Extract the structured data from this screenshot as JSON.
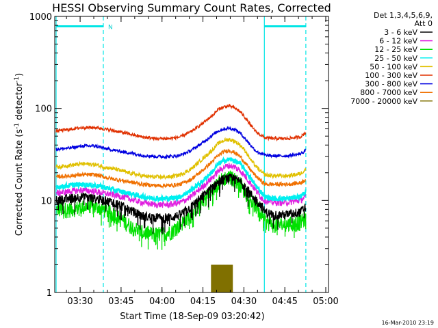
{
  "chart_data": {
    "type": "line",
    "title": "HESSI Observing Summary Count Rates, Corrected",
    "xlabel": "Start Time (18-Sep-09 03:20:42)",
    "ylabel_main": "Corrected Count Rate (s",
    "ylabel_exp1": "-1",
    "ylabel_mid": " detector",
    "ylabel_exp2": "-1",
    "ylabel_end": ")",
    "y_scale": "log",
    "ylim": [
      1,
      1000
    ],
    "xlim_minutes": [
      0,
      100.3
    ],
    "y_ticks": [
      {
        "value": 1,
        "label": "1"
      },
      {
        "value": 10,
        "label": "10"
      },
      {
        "value": 100,
        "label": "100"
      },
      {
        "value": 1000,
        "label": "1000"
      }
    ],
    "x_ticks": [
      {
        "minute": 9.3,
        "label": "03:30"
      },
      {
        "minute": 24.3,
        "label": "03:45"
      },
      {
        "minute": 39.3,
        "label": "04:00"
      },
      {
        "minute": 54.3,
        "label": "04:15"
      },
      {
        "minute": 69.3,
        "label": "04:30"
      },
      {
        "minute": 84.3,
        "label": "04:45"
      },
      {
        "minute": 99.3,
        "label": "05:00"
      }
    ],
    "legend_header": [
      "Det 1,3,4,5,6,9,",
      "Att 0"
    ],
    "legend_placement": "right",
    "timestamp": "16-Mar-2010 23:19",
    "annotations": [
      {
        "text": "N",
        "minute": 17.8
      }
    ],
    "flag_bars": [
      {
        "name": "night",
        "start": 0.5,
        "end": 17.8,
        "y": 780,
        "color": "#00e5e5"
      },
      {
        "name": "night",
        "start": 76.8,
        "end": 92.0,
        "y": 780,
        "color": "#00e5e5"
      }
    ],
    "flag_lines": [
      {
        "minute": 0.5,
        "style": "solid",
        "color": "#00e5e5"
      },
      {
        "minute": 17.8,
        "style": "dashed",
        "color": "#00e5e5"
      },
      {
        "minute": 76.8,
        "style": "solid",
        "color": "#00e5e5"
      },
      {
        "minute": 92.0,
        "style": "dashed",
        "color": "#00e5e5"
      }
    ],
    "series": [
      {
        "name": "3 - 6 keV",
        "color": "#000000",
        "noise": 0.12,
        "x": [
          0.5,
          5,
          10,
          15,
          18,
          22,
          27,
          32,
          37,
          42,
          46,
          50,
          54,
          58,
          60,
          62,
          64,
          66,
          68,
          70,
          72,
          74,
          76,
          77,
          80,
          85,
          90,
          92
        ],
        "y": [
          10,
          10.5,
          11,
          10.5,
          10,
          9.5,
          8,
          6.8,
          6.5,
          6.5,
          7,
          8.5,
          11,
          14,
          16,
          17,
          17.5,
          17,
          16,
          14,
          11.5,
          10,
          8.5,
          7.5,
          7,
          7,
          7.5,
          8.5
        ]
      },
      {
        "name": "6 - 12 keV",
        "color": "#e020e0",
        "noise": 0.08,
        "x": [
          0.5,
          5,
          10,
          15,
          18,
          22,
          27,
          32,
          37,
          42,
          46,
          50,
          54,
          58,
          60,
          62,
          64,
          66,
          68,
          70,
          72,
          74,
          76,
          77,
          80,
          85,
          90,
          92
        ],
        "y": [
          12,
          12.5,
          13,
          12.5,
          12,
          11.5,
          10.5,
          9.5,
          9,
          9,
          9.5,
          11,
          14,
          18,
          21,
          23,
          24,
          23,
          21,
          18,
          15,
          12.5,
          10.5,
          10,
          9.5,
          9.5,
          10,
          11
        ]
      },
      {
        "name": "12 - 25 keV",
        "color": "#00e000",
        "noise": 0.2,
        "x": [
          0.5,
          5,
          10,
          15,
          18,
          22,
          27,
          32,
          37,
          42,
          46,
          50,
          54,
          58,
          60,
          62,
          64,
          66,
          68,
          70,
          72,
          74,
          76,
          77,
          80,
          85,
          90,
          92
        ],
        "y": [
          8,
          8,
          8.5,
          8.5,
          8,
          7,
          5.5,
          4.5,
          4.3,
          4.5,
          5.5,
          7,
          10,
          13,
          16,
          17.5,
          18,
          17,
          15,
          12,
          10,
          8.5,
          7,
          6,
          5.5,
          5.5,
          5.8,
          6.5
        ]
      },
      {
        "name": "25 - 50 keV",
        "color": "#00f0f0",
        "noise": 0.06,
        "x": [
          0.5,
          5,
          10,
          15,
          18,
          22,
          27,
          32,
          37,
          42,
          46,
          50,
          54,
          58,
          60,
          62,
          64,
          66,
          68,
          70,
          72,
          74,
          76,
          77,
          80,
          85,
          90,
          92
        ],
        "y": [
          14,
          14.5,
          15,
          14.5,
          14,
          13,
          12,
          11,
          10.5,
          10.5,
          11,
          13,
          16,
          21,
          25,
          27,
          28,
          27,
          25,
          21,
          17,
          14,
          12,
          11,
          10.5,
          10.5,
          11,
          12.5
        ]
      },
      {
        "name": "50 - 100 keV",
        "color": "#e0c000",
        "noise": 0.05,
        "x": [
          0.5,
          5,
          10,
          15,
          18,
          22,
          27,
          32,
          37,
          42,
          46,
          50,
          54,
          58,
          60,
          62,
          64,
          66,
          68,
          70,
          72,
          74,
          76,
          77,
          80,
          85,
          90,
          92
        ],
        "y": [
          23,
          24,
          25,
          24.5,
          23,
          22,
          20,
          18.5,
          18,
          18,
          19,
          22,
          28,
          36,
          42,
          45,
          46,
          44,
          40,
          34,
          27,
          23,
          20,
          19,
          18.5,
          18.5,
          19.5,
          22
        ]
      },
      {
        "name": "100 - 300 keV",
        "color": "#e03000",
        "noise": 0.04,
        "x": [
          0.5,
          5,
          10,
          15,
          18,
          22,
          27,
          32,
          37,
          42,
          46,
          50,
          54,
          58,
          60,
          62,
          64,
          66,
          68,
          70,
          72,
          74,
          76,
          77,
          80,
          85,
          90,
          92
        ],
        "y": [
          57,
          59,
          62,
          62,
          60,
          57,
          53,
          49,
          47,
          47,
          49,
          56,
          68,
          85,
          98,
          104,
          106,
          101,
          92,
          78,
          64,
          55,
          50,
          48,
          47,
          47,
          49,
          55
        ]
      },
      {
        "name": "300 - 800 keV",
        "color": "#0000e0",
        "noise": 0.04,
        "x": [
          0.5,
          5,
          10,
          15,
          18,
          22,
          27,
          32,
          37,
          42,
          46,
          50,
          54,
          58,
          60,
          62,
          64,
          66,
          68,
          70,
          72,
          74,
          76,
          77,
          80,
          85,
          90,
          92
        ],
        "y": [
          36,
          37,
          39,
          39,
          37,
          35,
          33,
          31,
          30,
          30,
          31,
          35,
          42,
          52,
          57,
          60,
          61,
          59,
          54,
          46,
          39,
          34,
          32,
          31,
          30.5,
          30.5,
          32,
          35
        ]
      },
      {
        "name": "800 - 7000 keV",
        "color": "#f07000",
        "noise": 0.05,
        "x": [
          0.5,
          5,
          10,
          15,
          18,
          22,
          27,
          32,
          37,
          42,
          46,
          50,
          54,
          58,
          60,
          62,
          64,
          66,
          68,
          70,
          72,
          74,
          76,
          77,
          80,
          85,
          90,
          92
        ],
        "y": [
          18,
          18.5,
          19,
          19,
          18,
          17,
          16,
          15,
          14.5,
          14.5,
          15,
          17,
          21,
          27,
          31,
          34,
          35,
          33,
          30,
          25,
          21,
          18,
          16,
          15,
          15,
          15,
          15.5,
          17
        ]
      },
      {
        "name": "7000 - 20000 keV",
        "color": "#807000",
        "noise": 0,
        "x": [],
        "y": []
      }
    ],
    "spike_bars": {
      "color": "#807000",
      "start": 57.5,
      "end": 65.0,
      "low": 1,
      "high": 2.0
    }
  }
}
